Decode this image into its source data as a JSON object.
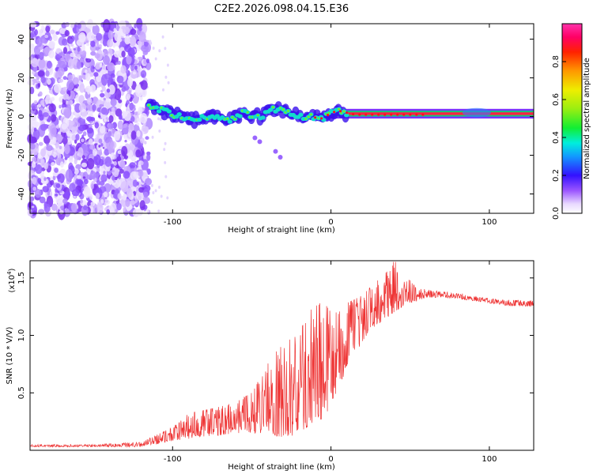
{
  "title": "C2E2.2026.098.04.15.E36",
  "chart_data": [
    {
      "type": "heatmap",
      "xlabel": "Height of straight line (km)",
      "ylabel": "Frequency (Hz)",
      "xlim": [
        -190,
        128
      ],
      "ylim": [
        -50,
        48
      ],
      "x_ticks": [
        -100,
        0,
        100
      ],
      "y_ticks": [
        -40,
        -20,
        0,
        20,
        40
      ],
      "colorbar": {
        "label": "Normalized spectral amplitude",
        "range": [
          0,
          1
        ],
        "ticks": [
          0.0,
          0.2,
          0.4,
          0.6,
          0.8
        ],
        "tick_labels": [
          "0.0",
          "0.2",
          "0.4",
          "0.6",
          "0.8"
        ]
      },
      "features": {
        "noise_region_x": [
          -190,
          -115
        ],
        "signal_track": [
          [
            -115,
            6
          ],
          [
            -105,
            3
          ],
          [
            -95,
            0
          ],
          [
            -85,
            -2
          ],
          [
            -75,
            1
          ],
          [
            -65,
            -2
          ],
          [
            -55,
            2
          ],
          [
            -45,
            0
          ],
          [
            -35,
            4
          ],
          [
            -25,
            1
          ],
          [
            -15,
            0
          ],
          [
            -5,
            -1
          ],
          [
            0,
            2
          ],
          [
            5,
            3
          ],
          [
            15,
            1
          ],
          [
            30,
            1
          ],
          [
            50,
            1
          ],
          [
            75,
            1
          ],
          [
            95,
            1
          ],
          [
            128,
            1
          ]
        ],
        "aside_blobs": [
          [
            -35,
            -18
          ],
          [
            -32,
            -21
          ],
          [
            -48,
            -11
          ],
          [
            -45,
            -13
          ]
        ]
      }
    },
    {
      "type": "line",
      "xlabel": "Height of straight line (km)",
      "ylabel": "SNR (10 * V/V)",
      "y_multiplier": "(x10",
      "y_multiplier_exp": "4",
      "y_multiplier_close": ")",
      "xlim": [
        -190,
        128
      ],
      "ylim": [
        0,
        1.65
      ],
      "x_ticks": [
        -100,
        0,
        100
      ],
      "y_ticks": [
        0.5,
        1.0,
        1.5
      ],
      "y_tick_labels": [
        "0.5",
        "1.0",
        "1.5"
      ],
      "color": "#ee3333",
      "series_envelope": [
        [
          -190,
          0.03,
          0.05
        ],
        [
          -150,
          0.03,
          0.05
        ],
        [
          -120,
          0.03,
          0.07
        ],
        [
          -100,
          0.08,
          0.2
        ],
        [
          -90,
          0.1,
          0.32
        ],
        [
          -80,
          0.12,
          0.35
        ],
        [
          -70,
          0.13,
          0.38
        ],
        [
          -60,
          0.15,
          0.42
        ],
        [
          -50,
          0.15,
          0.5
        ],
        [
          -40,
          0.15,
          0.75
        ],
        [
          -30,
          0.1,
          0.95
        ],
        [
          -20,
          0.15,
          1.0
        ],
        [
          -15,
          0.2,
          1.2
        ],
        [
          -10,
          0.2,
          1.25
        ],
        [
          -5,
          0.25,
          1.3
        ],
        [
          0,
          0.4,
          1.2
        ],
        [
          5,
          0.55,
          1.2
        ],
        [
          10,
          0.7,
          1.28
        ],
        [
          20,
          0.95,
          1.35
        ],
        [
          25,
          1.05,
          1.42
        ],
        [
          35,
          1.15,
          1.55
        ],
        [
          40,
          1.2,
          1.65
        ],
        [
          45,
          1.25,
          1.58
        ],
        [
          50,
          1.28,
          1.48
        ],
        [
          55,
          1.3,
          1.42
        ],
        [
          60,
          1.33,
          1.4
        ],
        [
          70,
          1.33,
          1.38
        ],
        [
          80,
          1.32,
          1.37
        ],
        [
          90,
          1.3,
          1.35
        ],
        [
          100,
          1.28,
          1.32
        ],
        [
          110,
          1.26,
          1.31
        ],
        [
          128,
          1.25,
          1.3
        ]
      ]
    }
  ]
}
